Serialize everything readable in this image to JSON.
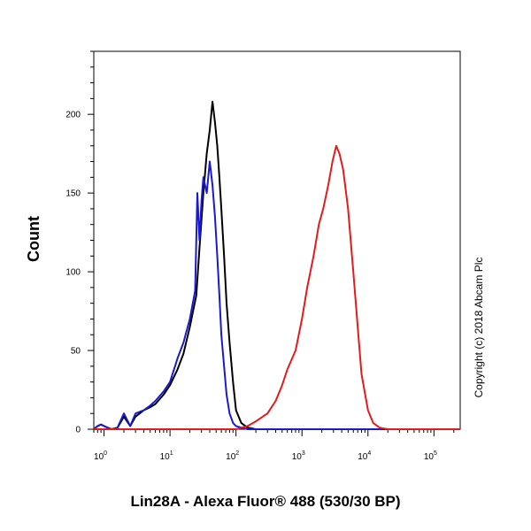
{
  "chart_data": {
    "type": "line",
    "title": "",
    "xlabel": "Lin28A - Alexa Fluor® 488 (530/30 BP)",
    "ylabel": "Count",
    "x_scale": "log",
    "xlim": [
      0.7,
      250000
    ],
    "ylim": [
      0,
      240
    ],
    "x_ticks": [
      {
        "value": 1,
        "base": "10",
        "exp": "0"
      },
      {
        "value": 10,
        "base": "10",
        "exp": "1"
      },
      {
        "value": 100,
        "base": "10",
        "exp": "2"
      },
      {
        "value": 1000,
        "base": "10",
        "exp": "3"
      },
      {
        "value": 10000,
        "base": "10",
        "exp": "4"
      },
      {
        "value": 100000,
        "base": "10",
        "exp": "5"
      }
    ],
    "y_ticks": [
      0,
      50,
      100,
      150,
      200
    ],
    "grid": false,
    "series": [
      {
        "color": "#000000",
        "x": [
          0.7,
          0.8,
          0.9,
          1.0,
          1.3,
          1.6,
          2.0,
          2.5,
          3.0,
          4.0,
          5.0,
          6.0,
          8.0,
          10,
          13,
          16,
          20,
          25,
          28,
          32,
          36,
          40,
          44,
          48,
          52,
          56,
          60,
          66,
          72,
          80,
          90,
          100,
          120,
          150,
          200,
          300,
          1000,
          250000
        ],
        "y": [
          0,
          2,
          3,
          2,
          0,
          1,
          8,
          2,
          8,
          12,
          14,
          16,
          22,
          28,
          38,
          48,
          65,
          85,
          115,
          150,
          175,
          190,
          208,
          195,
          180,
          160,
          140,
          110,
          80,
          55,
          30,
          12,
          4,
          1,
          0,
          0,
          0,
          0
        ]
      },
      {
        "color": "#1a1acc",
        "x": [
          0.7,
          0.8,
          0.9,
          1.0,
          1.3,
          1.6,
          2.0,
          2.5,
          3.0,
          4.0,
          5.0,
          6.0,
          8.0,
          10,
          13,
          16,
          20,
          24,
          26,
          28,
          30,
          32,
          36,
          40,
          44,
          48,
          52,
          56,
          60,
          66,
          72,
          80,
          90,
          100,
          120,
          150,
          200,
          250000
        ],
        "y": [
          0,
          2,
          3,
          2,
          0,
          1,
          10,
          2,
          10,
          12,
          15,
          18,
          24,
          30,
          45,
          55,
          70,
          88,
          150,
          120,
          145,
          160,
          150,
          170,
          155,
          135,
          110,
          85,
          60,
          40,
          22,
          10,
          4,
          2,
          1,
          0,
          0,
          0
        ]
      },
      {
        "color": "#e41a1c",
        "x": [
          0.7,
          100,
          150,
          200,
          300,
          400,
          500,
          600,
          800,
          1000,
          1200,
          1500,
          1800,
          2100,
          2500,
          2900,
          3300,
          3700,
          4200,
          5000,
          6000,
          7000,
          8000,
          10000,
          12000,
          15000,
          20000,
          250000
        ],
        "y": [
          0,
          0,
          2,
          5,
          10,
          18,
          28,
          38,
          50,
          70,
          90,
          110,
          130,
          140,
          155,
          170,
          180,
          175,
          165,
          140,
          100,
          65,
          35,
          12,
          4,
          1,
          0,
          0
        ]
      }
    ]
  },
  "copyright": "Copyright (c) 2018 Abcam Plc"
}
